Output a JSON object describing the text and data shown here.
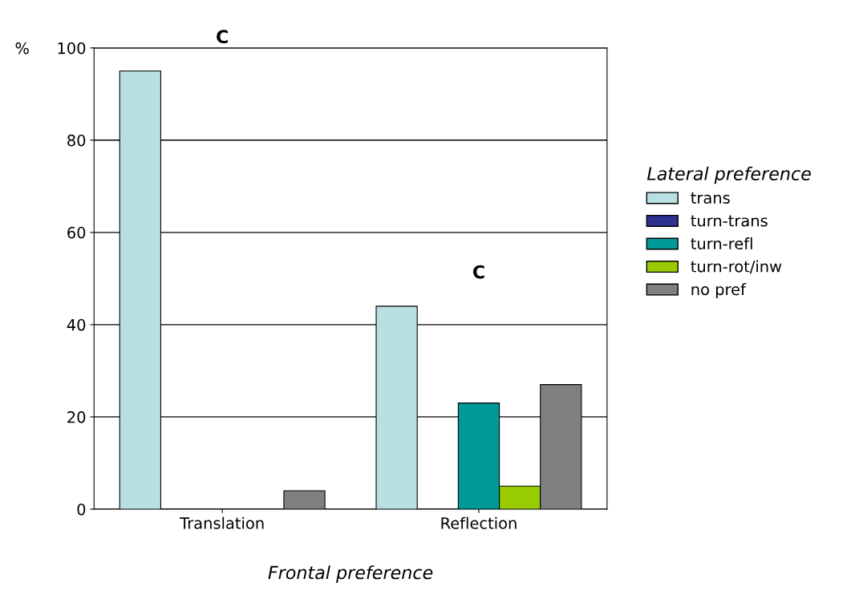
{
  "chart_data": {
    "type": "bar",
    "ylabel": "%",
    "xlabel": "Frontal preference",
    "legend_title": "Lateral preference",
    "categories": [
      "Translation",
      "Reflection"
    ],
    "series": [
      {
        "name": "trans",
        "color": "#b8e0e3",
        "values": [
          95,
          44
        ]
      },
      {
        "name": "turn-trans",
        "color": "#2e3192",
        "values": [
          0,
          0
        ]
      },
      {
        "name": "turn-refl",
        "color": "#009999",
        "values": [
          0,
          23
        ]
      },
      {
        "name": "turn-rot/inw",
        "color": "#99cc00",
        "values": [
          0,
          5
        ]
      },
      {
        "name": "no pref",
        "color": "#808080",
        "values": [
          4,
          27
        ]
      }
    ],
    "ylim": [
      0,
      100
    ],
    "yticks": [
      0,
      20,
      40,
      60,
      80,
      100
    ],
    "grid": "y",
    "legend": "right",
    "annotations": [
      "C",
      "C"
    ]
  }
}
